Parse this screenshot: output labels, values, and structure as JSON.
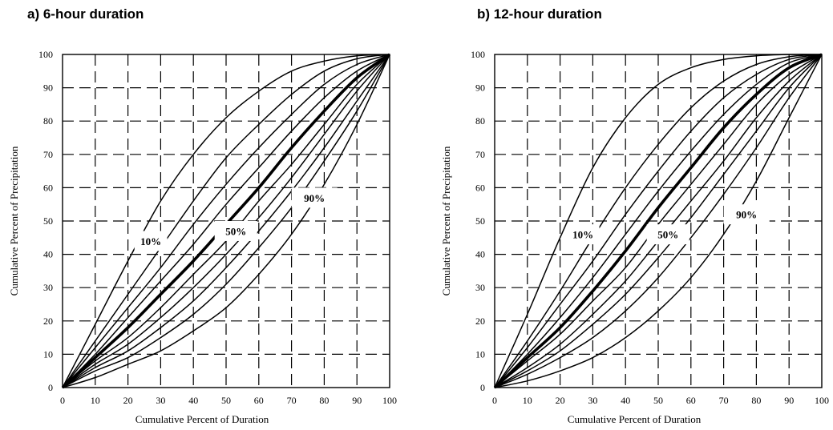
{
  "chart_data": [
    {
      "type": "line",
      "title": "a) 6-hour duration",
      "xlabel": "Cumulative Percent of Duration",
      "ylabel": "Cumulative Percent of Precipitation",
      "xlim": [
        0,
        100
      ],
      "ylim": [
        0,
        100
      ],
      "x_ticks": [
        "0",
        "10",
        "20",
        "30",
        "40",
        "50",
        "60",
        "70",
        "80",
        "90",
        "100"
      ],
      "y_ticks": [
        "0",
        "10",
        "20",
        "30",
        "40",
        "50",
        "60",
        "70",
        "80",
        "90",
        "100"
      ],
      "grid": "dashed",
      "x": [
        0,
        10,
        20,
        30,
        40,
        50,
        60,
        70,
        80,
        90,
        100
      ],
      "series": [
        {
          "values": [
            0,
            19,
            38,
            56,
            70,
            81,
            89,
            95,
            98,
            99.6,
            100
          ]
        },
        {
          "values": [
            0,
            14,
            28,
            42,
            56,
            69,
            79,
            88,
            95,
            98.7,
            100
          ]
        },
        {
          "values": [
            0,
            12,
            24,
            36,
            49,
            61,
            72,
            82,
            91,
            97,
            100
          ]
        },
        {
          "values": [
            0,
            10,
            21,
            32,
            43,
            55,
            66,
            77,
            87,
            95,
            100
          ]
        },
        {
          "values": [
            0,
            9,
            18,
            28,
            38,
            49,
            60,
            72,
            83,
            93,
            100
          ]
        },
        {
          "values": [
            0,
            8,
            15,
            24,
            34,
            44,
            56,
            67,
            79,
            91,
            100
          ]
        },
        {
          "values": [
            0,
            7,
            13,
            21,
            30,
            40,
            51,
            63,
            76,
            89,
            100
          ]
        },
        {
          "values": [
            0,
            6,
            11,
            18,
            26,
            36,
            47,
            59,
            72,
            86,
            100
          ]
        },
        {
          "values": [
            0,
            5,
            9,
            15,
            22,
            31,
            42,
            54,
            68,
            83,
            100
          ]
        },
        {
          "values": [
            0,
            3,
            7,
            11,
            17,
            24,
            34,
            46,
            61,
            79,
            100
          ]
        }
      ],
      "highlight_series": 4,
      "annotations": [
        "10%",
        "50%",
        "90%"
      ]
    },
    {
      "type": "line",
      "title": "b) 12-hour duration",
      "xlabel": "Cumulative Percent of Duration",
      "ylabel": "Cumulative Percent of Precipitation",
      "xlim": [
        0,
        100
      ],
      "ylim": [
        0,
        100
      ],
      "x_ticks": [
        "0",
        "10",
        "20",
        "30",
        "40",
        "50",
        "60",
        "70",
        "80",
        "90",
        "100"
      ],
      "y_ticks": [
        "0",
        "10",
        "20",
        "30",
        "40",
        "50",
        "60",
        "70",
        "80",
        "90",
        "100"
      ],
      "grid": "dashed",
      "x": [
        0,
        10,
        20,
        30,
        40,
        50,
        60,
        70,
        80,
        90,
        100
      ],
      "series": [
        {
          "values": [
            0,
            22,
            45,
            66,
            81,
            91,
            96,
            98.5,
            99.6,
            100,
            100
          ]
        },
        {
          "values": [
            0,
            14,
            29,
            45,
            60,
            73,
            84,
            92,
            97,
            99.3,
            100
          ]
        },
        {
          "values": [
            0,
            12,
            25,
            38,
            52,
            65,
            77,
            87,
            94,
            98.5,
            100
          ]
        },
        {
          "values": [
            0,
            10,
            21,
            33,
            46,
            59,
            71,
            82,
            91,
            97.5,
            100
          ]
        },
        {
          "values": [
            0,
            9,
            18,
            29,
            41,
            54,
            66,
            78,
            88,
            96,
            100
          ]
        },
        {
          "values": [
            0,
            8,
            16,
            26,
            36,
            49,
            61,
            73,
            85,
            94,
            100
          ]
        },
        {
          "values": [
            0,
            6,
            13,
            22,
            32,
            44,
            56,
            68,
            81,
            92,
            100
          ]
        },
        {
          "values": [
            0,
            5,
            11,
            19,
            28,
            39,
            51,
            64,
            77,
            90,
            100
          ]
        },
        {
          "values": [
            0,
            4,
            9,
            15,
            23,
            33,
            45,
            58,
            72,
            87,
            100
          ]
        },
        {
          "values": [
            0,
            2,
            5,
            9,
            15,
            23,
            33,
            46,
            62,
            81,
            100
          ]
        }
      ],
      "highlight_series": 4,
      "annotations": [
        "10%",
        "50%",
        "90%"
      ]
    }
  ],
  "layout_ref": {
    "label_anchor_note": "annotation positions are set in the script"
  }
}
